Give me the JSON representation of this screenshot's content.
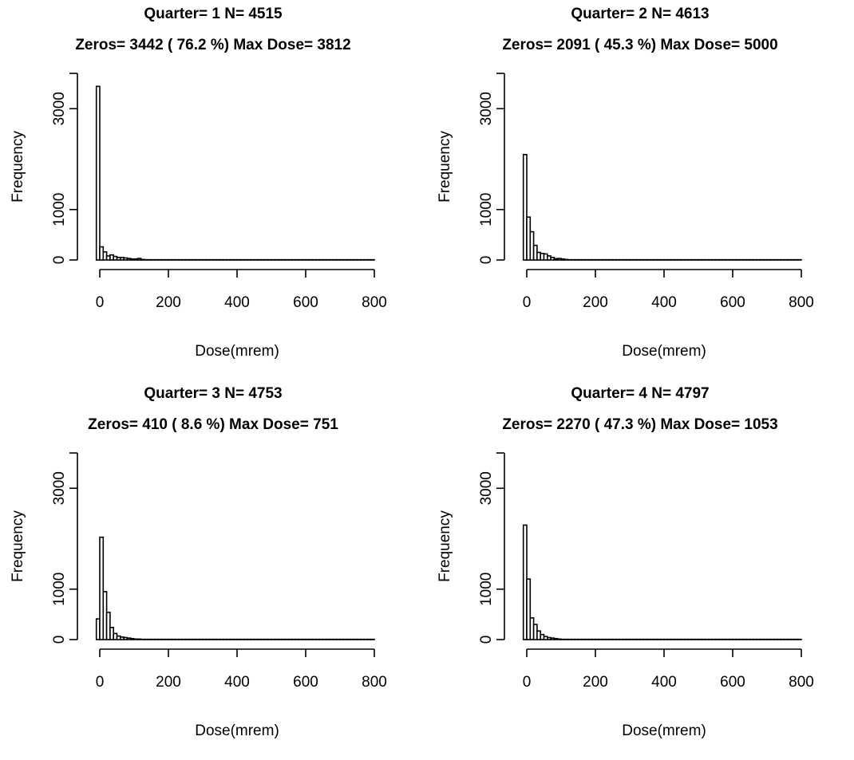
{
  "chart_data": [
    {
      "type": "bar",
      "title": "Quarter= 1  N=  4515",
      "subtitle": "Zeros=  3442 (  76.2 %) Max Dose=  3812",
      "xlabel": "Dose(mrem)",
      "ylabel": "Frequency",
      "xlim": [
        0,
        800
      ],
      "ylim": [
        0,
        3700
      ],
      "xticks": [
        "0",
        "200",
        "400",
        "600",
        "800"
      ],
      "yticks": [
        "0",
        "1000",
        "3000"
      ],
      "bin_width": 10,
      "bin_start": -10,
      "values": [
        3442,
        260,
        160,
        80,
        100,
        70,
        50,
        50,
        40,
        30,
        20,
        20,
        30,
        10,
        5,
        5,
        5,
        5,
        5,
        5,
        5,
        5,
        5,
        5,
        5,
        5,
        5,
        5,
        5,
        5,
        5,
        5,
        5,
        5,
        5,
        5,
        5,
        5,
        5,
        5,
        5,
        5,
        5,
        5,
        5,
        5,
        5,
        5,
        5,
        5,
        5,
        5,
        5,
        5,
        5,
        5,
        5,
        5,
        5,
        5,
        5,
        5,
        5,
        5,
        5,
        5,
        5,
        5,
        5,
        5,
        5,
        5,
        5,
        5,
        5,
        5,
        5,
        5,
        5,
        5,
        5
      ]
    },
    {
      "type": "bar",
      "title": "Quarter= 2  N=  4613",
      "subtitle": "Zeros=  2091 (  45.3 %) Max Dose=  5000",
      "xlabel": "Dose(mrem)",
      "ylabel": "Frequency",
      "xlim": [
        0,
        800
      ],
      "ylim": [
        0,
        3700
      ],
      "xticks": [
        "0",
        "200",
        "400",
        "600",
        "800"
      ],
      "yticks": [
        "0",
        "1000",
        "3000"
      ],
      "bin_width": 10,
      "bin_start": -10,
      "values": [
        2091,
        850,
        560,
        290,
        150,
        130,
        120,
        80,
        50,
        25,
        30,
        20,
        10,
        5,
        5,
        5,
        5,
        5,
        5,
        5,
        5,
        5,
        5,
        5,
        5,
        5,
        5,
        5,
        5,
        5,
        5,
        5,
        5,
        5,
        5,
        5,
        5,
        5,
        5,
        5,
        5,
        5,
        5,
        5,
        5,
        5,
        5,
        5,
        5,
        5,
        5,
        5,
        5,
        5,
        5,
        5,
        5,
        5,
        5,
        5,
        5,
        5,
        5,
        5,
        5,
        5,
        5,
        5,
        5,
        5,
        5,
        5,
        5,
        5,
        5,
        5,
        5,
        5,
        5,
        5,
        5
      ]
    },
    {
      "type": "bar",
      "title": "Quarter= 3  N=  4753",
      "subtitle": "Zeros=  410 (  8.6 %) Max Dose=  751",
      "xlabel": "Dose(mrem)",
      "ylabel": "Frequency",
      "xlim": [
        0,
        800
      ],
      "ylim": [
        0,
        3700
      ],
      "xticks": [
        "0",
        "200",
        "400",
        "600",
        "800"
      ],
      "yticks": [
        "0",
        "1000",
        "3000"
      ],
      "bin_width": 10,
      "bin_start": -10,
      "values": [
        410,
        2030,
        950,
        540,
        240,
        120,
        70,
        50,
        40,
        30,
        20,
        10,
        10,
        5,
        5,
        5,
        5,
        5,
        5,
        5,
        5,
        5,
        5,
        5,
        5,
        5,
        5,
        5,
        5,
        5,
        5,
        5,
        5,
        5,
        5,
        5,
        5,
        5,
        5,
        5,
        5,
        5,
        5,
        5,
        5,
        5,
        5,
        5,
        5,
        5,
        5,
        5,
        5,
        5,
        5,
        5,
        5,
        5,
        5,
        5,
        5,
        5,
        5,
        5,
        5,
        5,
        5,
        5,
        5,
        5,
        5,
        5,
        5,
        5,
        5,
        5,
        5,
        5,
        5,
        5,
        5
      ]
    },
    {
      "type": "bar",
      "title": "Quarter= 4  N=  4797",
      "subtitle": "Zeros=  2270 (  47.3 %) Max Dose=  1053",
      "xlabel": "Dose(mrem)",
      "ylabel": "Frequency",
      "xlim": [
        0,
        800
      ],
      "ylim": [
        0,
        3700
      ],
      "xticks": [
        "0",
        "200",
        "400",
        "600",
        "800"
      ],
      "yticks": [
        "0",
        "1000",
        "3000"
      ],
      "bin_width": 10,
      "bin_start": -10,
      "values": [
        2270,
        1200,
        430,
        300,
        170,
        100,
        60,
        40,
        30,
        20,
        10,
        5,
        5,
        5,
        5,
        5,
        5,
        5,
        5,
        5,
        5,
        5,
        5,
        5,
        5,
        5,
        5,
        5,
        5,
        5,
        5,
        5,
        5,
        5,
        5,
        5,
        5,
        5,
        5,
        5,
        5,
        5,
        5,
        5,
        5,
        5,
        5,
        5,
        5,
        5,
        5,
        5,
        5,
        5,
        5,
        5,
        5,
        5,
        5,
        5,
        5,
        5,
        5,
        5,
        5,
        5,
        5,
        5,
        5,
        5,
        5,
        5,
        5,
        5,
        5,
        5,
        5,
        5,
        5,
        5,
        5
      ]
    }
  ]
}
